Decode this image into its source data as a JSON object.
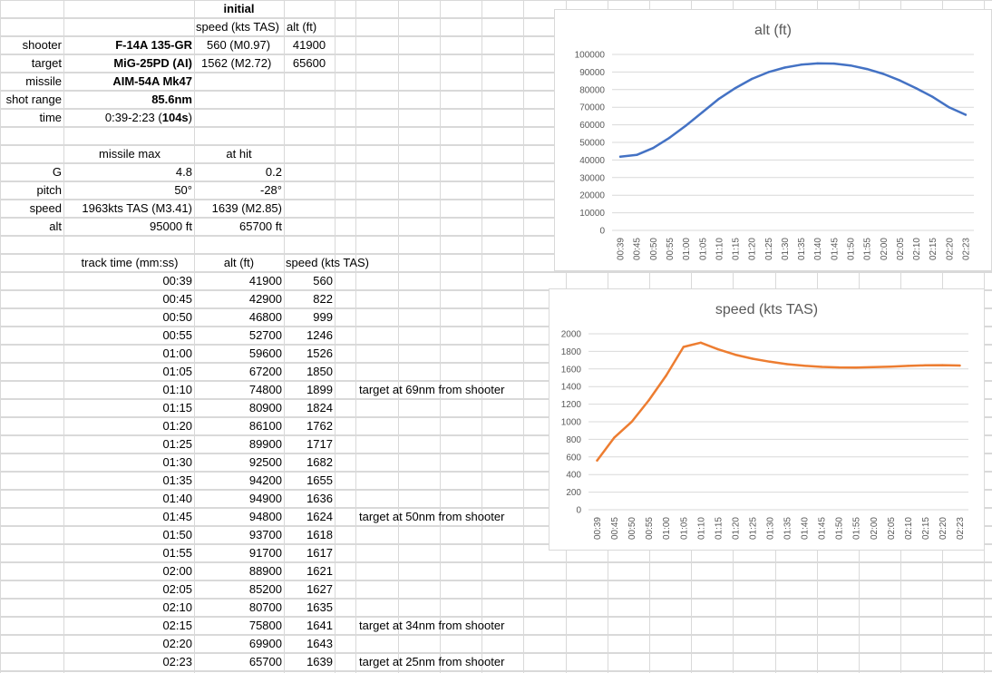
{
  "header": {
    "initial": "initial",
    "speed_col": "speed (kts TAS)",
    "alt_col": "alt (ft)"
  },
  "rows_top": [
    {
      "label": "shooter",
      "value": "F-14A 135-GR",
      "speed": "560 (M0.97)",
      "alt": "41900"
    },
    {
      "label": "target",
      "value": "MiG-25PD (AI)",
      "speed": "1562 (M2.72)",
      "alt": "65600"
    },
    {
      "label": "missile",
      "value": "AIM-54A Mk47"
    },
    {
      "label": "shot range",
      "value": "85.6nm"
    },
    {
      "label": "time",
      "value_plain": "0:39-2:23 (",
      "value_bold": "104s",
      "value_end": ")"
    }
  ],
  "stats_header": {
    "missile_max": "missile max",
    "at_hit": "at hit"
  },
  "stats": [
    {
      "label": "G",
      "max": "4.8",
      "hit": "0.2"
    },
    {
      "label": "pitch",
      "max": "50°",
      "hit": "-28°"
    },
    {
      "label": "speed",
      "max": "1963kts TAS (M3.41)",
      "hit": "1639 (M2.85)"
    },
    {
      "label": "alt",
      "max": "95000 ft",
      "hit": "65700 ft"
    }
  ],
  "track_header": {
    "time": "track time (mm:ss)",
    "alt": "alt (ft)",
    "speed": "speed (kts TAS)"
  },
  "track": [
    {
      "t": "00:39",
      "alt": "41900",
      "speed": "560",
      "note": ""
    },
    {
      "t": "00:45",
      "alt": "42900",
      "speed": "822",
      "note": ""
    },
    {
      "t": "00:50",
      "alt": "46800",
      "speed": "999",
      "note": ""
    },
    {
      "t": "00:55",
      "alt": "52700",
      "speed": "1246",
      "note": ""
    },
    {
      "t": "01:00",
      "alt": "59600",
      "speed": "1526",
      "note": ""
    },
    {
      "t": "01:05",
      "alt": "67200",
      "speed": "1850",
      "note": ""
    },
    {
      "t": "01:10",
      "alt": "74800",
      "speed": "1899",
      "note": "target at 69nm from shooter"
    },
    {
      "t": "01:15",
      "alt": "80900",
      "speed": "1824",
      "note": ""
    },
    {
      "t": "01:20",
      "alt": "86100",
      "speed": "1762",
      "note": ""
    },
    {
      "t": "01:25",
      "alt": "89900",
      "speed": "1717",
      "note": ""
    },
    {
      "t": "01:30",
      "alt": "92500",
      "speed": "1682",
      "note": ""
    },
    {
      "t": "01:35",
      "alt": "94200",
      "speed": "1655",
      "note": ""
    },
    {
      "t": "01:40",
      "alt": "94900",
      "speed": "1636",
      "note": ""
    },
    {
      "t": "01:45",
      "alt": "94800",
      "speed": "1624",
      "note": "target at 50nm from shooter"
    },
    {
      "t": "01:50",
      "alt": "93700",
      "speed": "1618",
      "note": ""
    },
    {
      "t": "01:55",
      "alt": "91700",
      "speed": "1617",
      "note": ""
    },
    {
      "t": "02:00",
      "alt": "88900",
      "speed": "1621",
      "note": ""
    },
    {
      "t": "02:05",
      "alt": "85200",
      "speed": "1627",
      "note": ""
    },
    {
      "t": "02:10",
      "alt": "80700",
      "speed": "1635",
      "note": ""
    },
    {
      "t": "02:15",
      "alt": "75800",
      "speed": "1641",
      "note": "target at 34nm from shooter"
    },
    {
      "t": "02:20",
      "alt": "69900",
      "speed": "1643",
      "note": ""
    },
    {
      "t": "02:23",
      "alt": "65700",
      "speed": "1639",
      "note": "target at 25nm from shooter"
    }
  ],
  "chart_data": [
    {
      "type": "line",
      "title": "alt (ft)",
      "categories": [
        "00:39",
        "00:45",
        "00:50",
        "00:55",
        "01:00",
        "01:05",
        "01:10",
        "01:15",
        "01:20",
        "01:25",
        "01:30",
        "01:35",
        "01:40",
        "01:45",
        "01:50",
        "01:55",
        "02:00",
        "02:05",
        "02:10",
        "02:15",
        "02:20",
        "02:23"
      ],
      "values": [
        41900,
        42900,
        46800,
        52700,
        59600,
        67200,
        74800,
        80900,
        86100,
        89900,
        92500,
        94200,
        94900,
        94800,
        93700,
        91700,
        88900,
        85200,
        80700,
        75800,
        69900,
        65700
      ],
      "ylim": [
        0,
        100000
      ],
      "yticks": [
        "0",
        "10000",
        "20000",
        "30000",
        "40000",
        "50000",
        "60000",
        "70000",
        "80000",
        "90000",
        "100000"
      ],
      "color": "#4472c4",
      "grid": true
    },
    {
      "type": "line",
      "title": "speed (kts TAS)",
      "categories": [
        "00:39",
        "00:45",
        "00:50",
        "00:55",
        "01:00",
        "01:05",
        "01:10",
        "01:15",
        "01:20",
        "01:25",
        "01:30",
        "01:35",
        "01:40",
        "01:45",
        "01:50",
        "01:55",
        "02:00",
        "02:05",
        "02:10",
        "02:15",
        "02:20",
        "02:23"
      ],
      "values": [
        560,
        822,
        999,
        1246,
        1526,
        1850,
        1899,
        1824,
        1762,
        1717,
        1682,
        1655,
        1636,
        1624,
        1618,
        1617,
        1621,
        1627,
        1635,
        1641,
        1643,
        1639
      ],
      "ylim": [
        0,
        2000
      ],
      "yticks": [
        "0",
        "200",
        "400",
        "600",
        "800",
        "1000",
        "1200",
        "1400",
        "1600",
        "1800",
        "2000"
      ],
      "color": "#ed7d31",
      "grid": true
    }
  ]
}
